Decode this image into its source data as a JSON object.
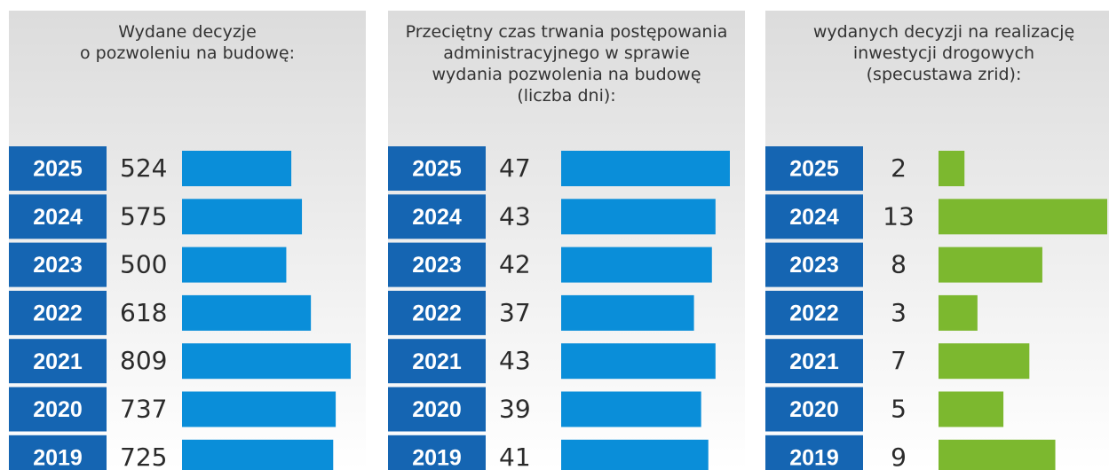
{
  "chart_data": [
    {
      "type": "bar",
      "title": [
        "Wydane decyzje",
        "o pozwoleniu na budowę:"
      ],
      "categories": [
        "2025",
        "2024",
        "2023",
        "2022",
        "2021",
        "2020",
        "2019"
      ],
      "values": [
        524,
        575,
        500,
        618,
        809,
        737,
        725
      ],
      "color": "#0a8ed9"
    },
    {
      "type": "bar",
      "title": [
        "Przeciętny czas trwania postępowania",
        "administracyjnego w sprawie",
        "wydania pozwolenia na budowę",
        "(liczba dni):"
      ],
      "categories": [
        "2025",
        "2024",
        "2023",
        "2022",
        "2021",
        "2020",
        "2019"
      ],
      "values": [
        47,
        43,
        42,
        37,
        43,
        39,
        41
      ],
      "color": "#0a8ed9"
    },
    {
      "type": "bar",
      "title": [
        "wydanych decyzji na realizację",
        "inwestycji drogowych",
        "(specustawa zrid):"
      ],
      "categories": [
        "2025",
        "2024",
        "2023",
        "2022",
        "2021",
        "2020",
        "2019"
      ],
      "values": [
        2,
        13,
        8,
        3,
        7,
        5,
        9
      ],
      "color": "#7cb82f"
    }
  ]
}
